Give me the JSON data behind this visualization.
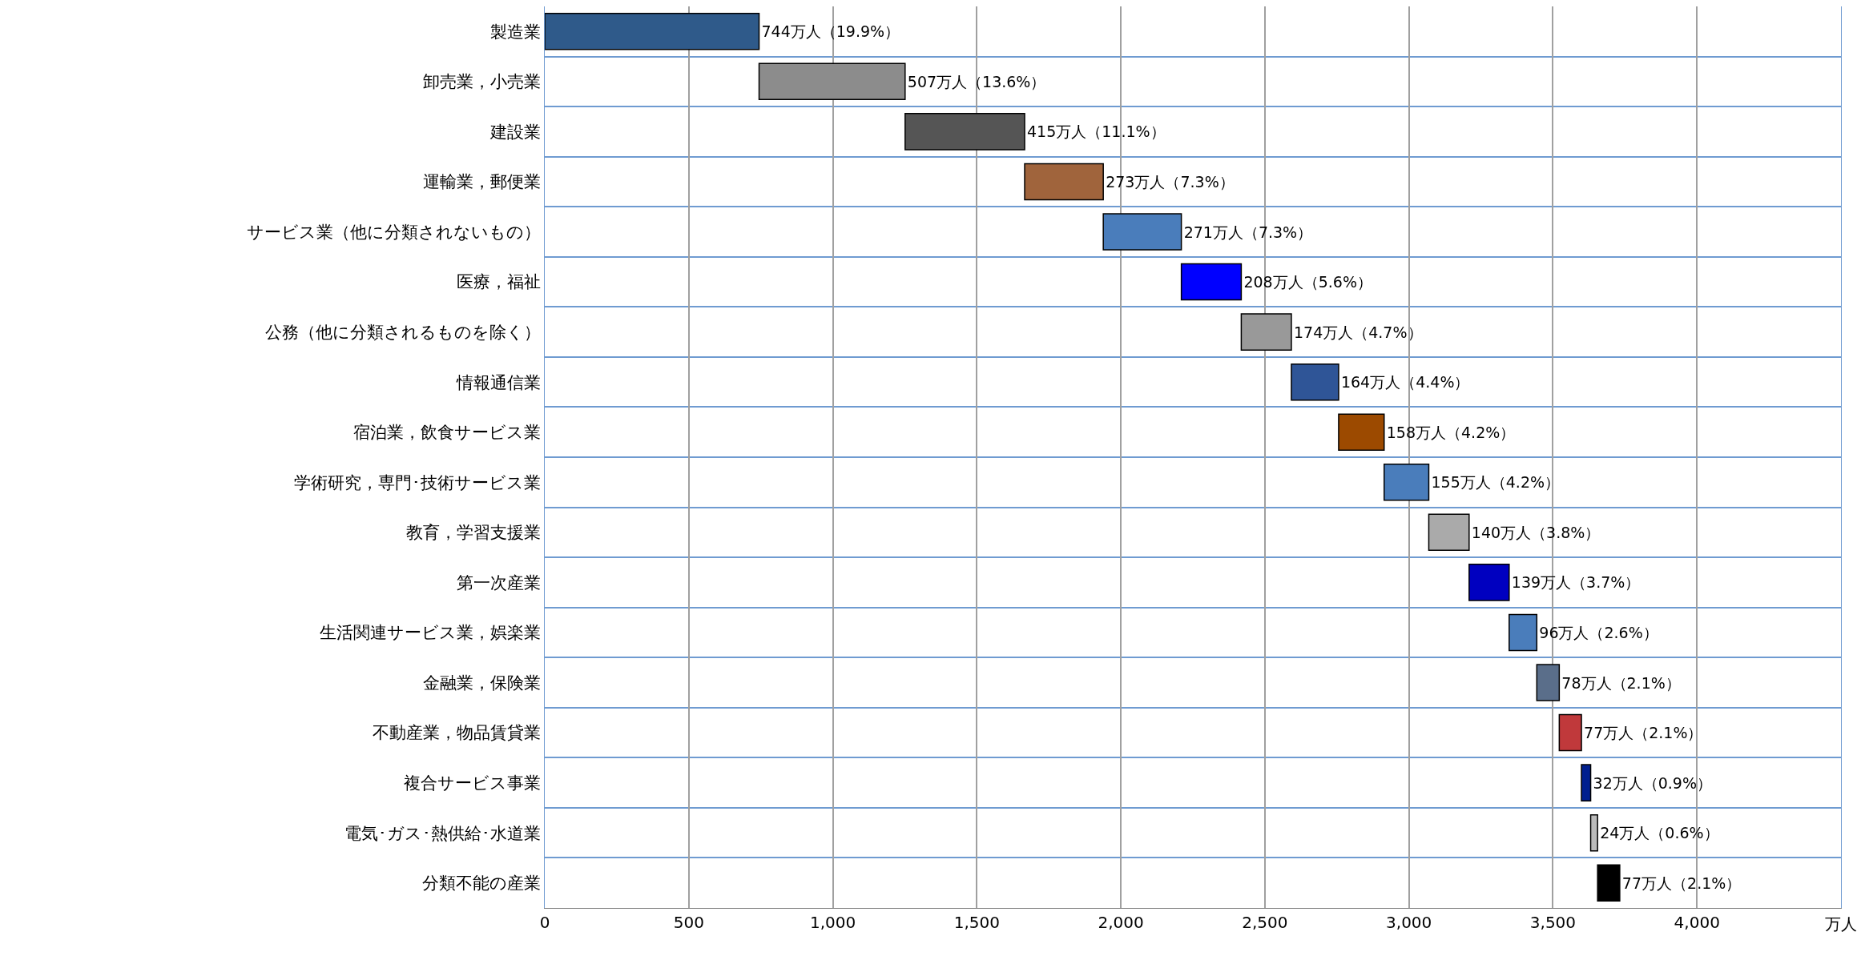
{
  "chart_data": {
    "type": "bar",
    "orientation": "horizontal",
    "xlabel": "万人",
    "categories": [
      "製造業",
      "卸売業，小売業",
      "建設業",
      "運輸業，郵便業",
      "サービス業（他に分類されないもの）",
      "医療，福祉",
      "公務（他に分類されるものを除く）",
      "情報通信業",
      "宿泊業，飲食サービス業",
      "学術研究，専門･技術サービス業",
      "教育，学習支援業",
      "第一次産業",
      "生活関連サービス業，娯楽業",
      "金融業，保険業",
      "不動産業，物品賃貸業",
      "複合サービス事業",
      "電気･ガス･熱供給･水道業",
      "分類不能の産業"
    ],
    "values": [
      744,
      507,
      415,
      273,
      271,
      208,
      174,
      164,
      158,
      155,
      140,
      139,
      96,
      78,
      77,
      32,
      24,
      77
    ],
    "base": [
      0,
      744,
      1251,
      1666,
      1939,
      2210,
      2418,
      2592,
      2756,
      2914,
      3069,
      3209,
      3348,
      3444,
      3522,
      3599,
      3631,
      3655
    ],
    "colors": [
      "#2f5a8a",
      "#8c8c8c",
      "#555555",
      "#a0643c",
      "#4a7dbb",
      "#0000ff",
      "#999999",
      "#2f5597",
      "#9c4a00",
      "#4a7dbb",
      "#aaaaaa",
      "#0000c0",
      "#4a7dbb",
      "#5a6e8a",
      "#c0393b",
      "#001f8f",
      "#bbbbbb",
      "#000000"
    ],
    "value_labels": [
      "744万人（19.9%）",
      "507万人（13.6%）",
      "415万人（11.1%）",
      "273万人（7.3%）",
      "271万人（7.3%）",
      "208万人（5.6%）",
      "174万人（4.7%）",
      "164万人（4.4%）",
      "158万人（4.2%）",
      "155万人（4.2%）",
      "140万人（3.8%）",
      "139万人（3.7%）",
      "96万人（2.6%）",
      "78万人（2.1%）",
      "77万人（2.1%）",
      "32万人（0.9%）",
      "24万人（0.6%）",
      "77万人（2.1%）"
    ],
    "xlim": [
      0,
      4500
    ],
    "xticks": [
      0,
      {
        "value": 500,
        "label": "500"
      },
      {
        "value": 1000,
        "label": "1,000"
      },
      {
        "value": 1500,
        "label": "1,500"
      },
      {
        "value": 2000,
        "label": "2,000"
      },
      {
        "value": 2500,
        "label": "2,500"
      },
      {
        "value": 3000,
        "label": "3,000"
      },
      {
        "value": 3500,
        "label": "3,500"
      },
      {
        "value": 4000,
        "label": "4,000"
      }
    ],
    "grid": true,
    "legend": false
  }
}
